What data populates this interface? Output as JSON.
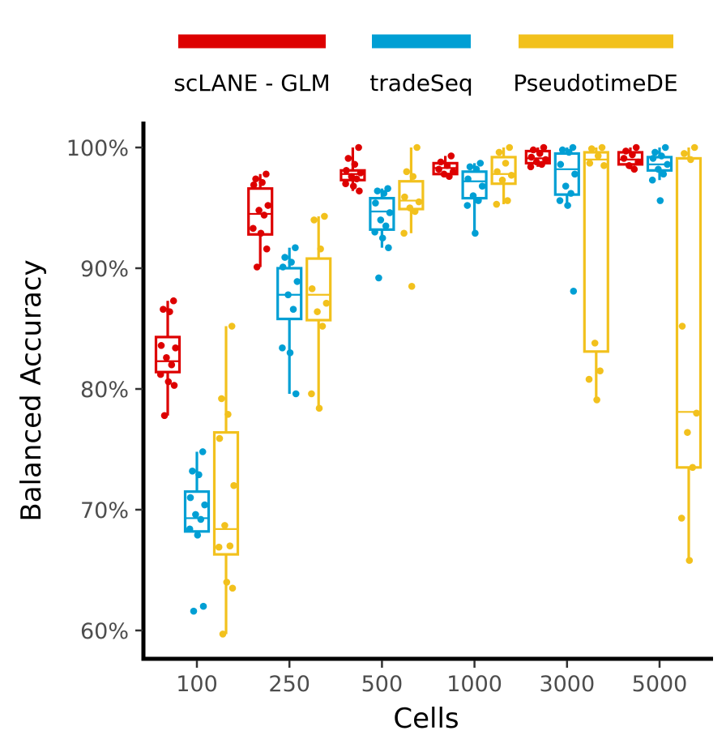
{
  "chart_data": {
    "type": "box",
    "xlabel": "Cells",
    "ylabel": "Balanced Accuracy",
    "categories": [
      "100",
      "250",
      "500",
      "1000",
      "3000",
      "5000"
    ],
    "y_ticks": [
      {
        "value": 60,
        "label": "60%"
      },
      {
        "value": 70,
        "label": "70%"
      },
      {
        "value": 80,
        "label": "80%"
      },
      {
        "value": 90,
        "label": "90%"
      },
      {
        "value": 100,
        "label": "100%"
      }
    ],
    "ylim": [
      57.5,
      102.2
    ],
    "legend_position": "top",
    "grid": false,
    "series": [
      {
        "name": "scLANE - GLM",
        "color": "#DD0000",
        "boxes": [
          {
            "whisker_low": 77.8,
            "q1": 81.4,
            "median": 82.3,
            "q3": 84.3,
            "whisker_high": 87.3,
            "points": [
              87.3,
              86.6,
              86.4,
              83.6,
              83.4,
              82.6,
              82.0,
              81.2,
              80.6,
              80.3,
              77.8
            ]
          },
          {
            "whisker_low": 90.1,
            "q1": 92.8,
            "median": 94.5,
            "q3": 96.6,
            "whisker_high": 97.8,
            "points": [
              97.8,
              97.4,
              97.1,
              96.9,
              95.2,
              94.8,
              94.4,
              93.3,
              92.9,
              91.6,
              90.1
            ]
          },
          {
            "whisker_low": 96.4,
            "q1": 97.3,
            "median": 97.8,
            "q3": 98.1,
            "whisker_high": 100.0,
            "points": [
              100.0,
              99.1,
              98.6,
              98.1,
              97.9,
              97.6,
              97.4,
              97.0,
              96.8,
              96.4
            ]
          },
          {
            "whisker_low": 97.6,
            "q1": 97.8,
            "median": 98.3,
            "q3": 98.7,
            "whisker_high": 99.3,
            "points": [
              99.3,
              98.8,
              98.5,
              98.2,
              98.0,
              97.8,
              97.6
            ]
          },
          {
            "whisker_low": 98.4,
            "q1": 98.7,
            "median": 99.1,
            "q3": 99.7,
            "whisker_high": 100.0,
            "points": [
              100.0,
              99.8,
              99.5,
              99.2,
              99.0,
              98.8,
              98.6,
              98.4
            ]
          },
          {
            "whisker_low": 98.2,
            "q1": 98.6,
            "median": 99.0,
            "q3": 99.6,
            "whisker_high": 100.0,
            "points": [
              100.0,
              99.7,
              99.4,
              99.1,
              98.8,
              98.5,
              98.2
            ]
          }
        ]
      },
      {
        "name": "tradeSeq",
        "color": "#009FD4",
        "boxes": [
          {
            "whisker_low": 67.8,
            "q1": 68.2,
            "median": 69.3,
            "q3": 71.5,
            "whisker_high": 74.8,
            "points": [
              74.8,
              73.2,
              72.9,
              71.0,
              70.4,
              69.6,
              69.2,
              68.4,
              67.9,
              62.0,
              61.6
            ]
          },
          {
            "whisker_low": 79.6,
            "q1": 85.8,
            "median": 87.8,
            "q3": 90.0,
            "whisker_high": 91.7,
            "points": [
              91.7,
              90.9,
              90.5,
              90.1,
              88.9,
              87.8,
              86.6,
              83.4,
              83.0,
              79.6
            ]
          },
          {
            "whisker_low": 91.7,
            "q1": 93.2,
            "median": 94.7,
            "q3": 95.8,
            "whisker_high": 96.6,
            "points": [
              96.6,
              96.4,
              96.2,
              95.4,
              94.6,
              94.0,
              93.5,
              93.0,
              92.5,
              91.7,
              89.2
            ]
          },
          {
            "whisker_low": 92.9,
            "q1": 95.8,
            "median": 97.2,
            "q3": 98.0,
            "whisker_high": 98.7,
            "points": [
              98.7,
              98.4,
              98.2,
              97.4,
              96.8,
              96.0,
              95.6,
              95.2,
              92.9
            ]
          },
          {
            "whisker_low": 95.1,
            "q1": 96.1,
            "median": 98.2,
            "q3": 99.5,
            "whisker_high": 100.0,
            "points": [
              100.0,
              99.8,
              99.6,
              98.6,
              97.8,
              96.8,
              96.2,
              95.6,
              95.2,
              88.1
            ]
          },
          {
            "whisker_low": 97.3,
            "q1": 98.1,
            "median": 98.6,
            "q3": 99.2,
            "whisker_high": 100.0,
            "points": [
              100.0,
              99.6,
              99.3,
              99.1,
              98.6,
              98.2,
              97.8,
              97.3,
              95.6
            ]
          }
        ]
      },
      {
        "name": "PseudotimeDE",
        "color": "#F2C11D",
        "boxes": [
          {
            "whisker_low": 59.7,
            "q1": 66.3,
            "median": 68.4,
            "q3": 76.4,
            "whisker_high": 85.2,
            "points": [
              85.2,
              79.2,
              77.9,
              75.9,
              72.0,
              68.7,
              67.0,
              66.9,
              64.0,
              63.5,
              59.7
            ]
          },
          {
            "whisker_low": 78.4,
            "q1": 85.7,
            "median": 87.8,
            "q3": 90.8,
            "whisker_high": 94.3,
            "points": [
              94.3,
              94.0,
              91.6,
              88.3,
              87.1,
              86.4,
              85.2,
              79.6,
              78.4
            ]
          },
          {
            "whisker_low": 92.9,
            "q1": 94.9,
            "median": 95.6,
            "q3": 97.2,
            "whisker_high": 100.0,
            "points": [
              100.0,
              98.0,
              97.6,
              95.9,
              95.5,
              95.0,
              94.7,
              92.9,
              88.5
            ]
          },
          {
            "whisker_low": 95.3,
            "q1": 97.0,
            "median": 97.8,
            "q3": 99.2,
            "whisker_high": 100.0,
            "points": [
              100.0,
              99.6,
              98.7,
              98.0,
              97.7,
              97.3,
              95.6,
              95.3
            ]
          },
          {
            "whisker_low": 79.1,
            "q1": 83.1,
            "median": 99.0,
            "q3": 99.6,
            "whisker_high": 100.0,
            "points": [
              100.0,
              99.9,
              99.3,
              98.7,
              98.5,
              83.8,
              81.5,
              80.8,
              79.1
            ]
          },
          {
            "whisker_low": 65.8,
            "q1": 73.5,
            "median": 78.1,
            "q3": 99.1,
            "whisker_high": 100.0,
            "points": [
              100.0,
              99.5,
              99.0,
              85.2,
              78.0,
              76.4,
              73.5,
              69.3,
              65.8
            ]
          }
        ]
      }
    ]
  }
}
